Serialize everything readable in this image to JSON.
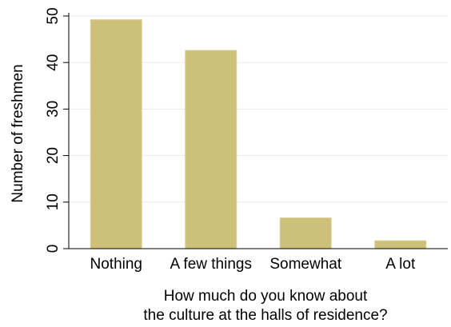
{
  "chart_data": {
    "type": "bar",
    "categories": [
      "Nothing",
      "A few things",
      "Somewhat",
      "A lot"
    ],
    "values": [
      49.2,
      42.6,
      6.6,
      1.7
    ],
    "xlabel": [
      "How much do you know about",
      "the culture at the halls of residence?"
    ],
    "ylabel": "Number of freshmen",
    "ylim": [
      0,
      50
    ],
    "yticks": [
      "0",
      "10",
      "20",
      "30",
      "40",
      "50"
    ],
    "grid": "horizontal",
    "bar_color": "#cdc17a",
    "bar_edge_color": "#d9cf9b",
    "grid_color": "#eaeaea",
    "axis_color": "#000000"
  }
}
